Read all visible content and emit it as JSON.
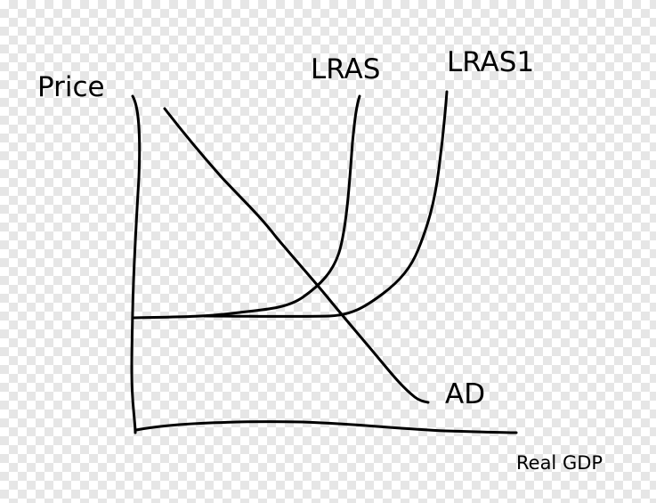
{
  "labels": {
    "y_axis": "Price",
    "x_axis": "Real GDP",
    "lras": "LRAS",
    "lras1": "LRAS1",
    "ad": "AD"
  },
  "colors": {
    "ink": "#000000",
    "checker_light": "#ffffff",
    "checker_dark": "#e6e6e6"
  }
}
